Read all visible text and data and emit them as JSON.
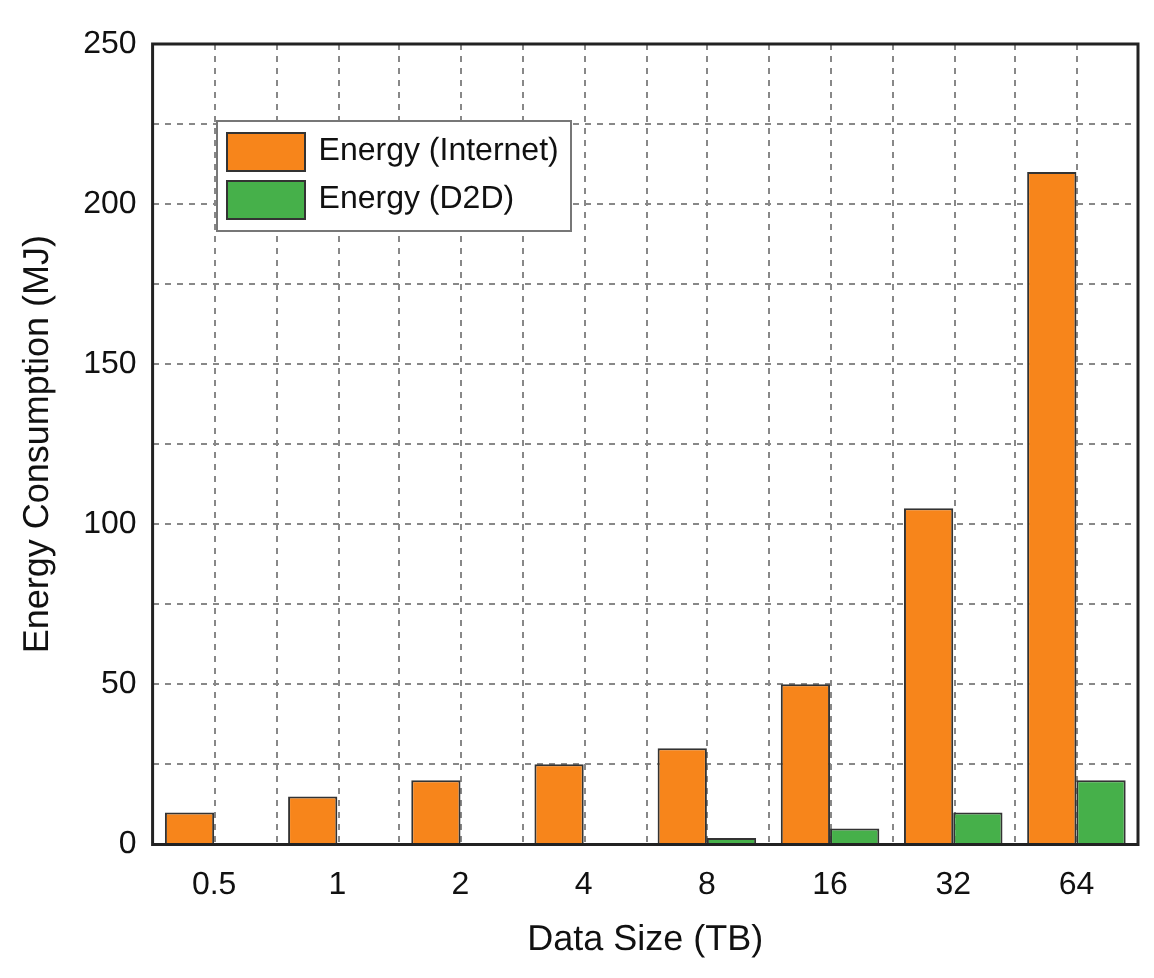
{
  "chart_data": {
    "type": "bar",
    "xlabel": "Data Size (TB)",
    "ylabel": "Energy Consumption (MJ)",
    "categories": [
      "0.5",
      "1",
      "2",
      "4",
      "8",
      "16",
      "32",
      "64"
    ],
    "series": [
      {
        "name": "Energy (Internet)",
        "color": "#f7851b",
        "values": [
          10,
          15,
          20,
          25,
          30,
          50,
          105,
          210
        ]
      },
      {
        "name": "Energy (D2D)",
        "color": "#46b04a",
        "values": [
          0,
          0,
          0,
          0,
          2,
          5,
          10,
          20
        ]
      }
    ],
    "ylim": [
      0,
      250
    ],
    "yticks": [
      0,
      {
        "value": 25,
        "label": null
      },
      50,
      {
        "value": 75,
        "label": null
      },
      100,
      {
        "value": 125,
        "label": null
      },
      150,
      {
        "value": 175,
        "label": null
      },
      200,
      {
        "value": 225,
        "label": null
      },
      250
    ],
    "grid": true,
    "legend": "top left"
  }
}
